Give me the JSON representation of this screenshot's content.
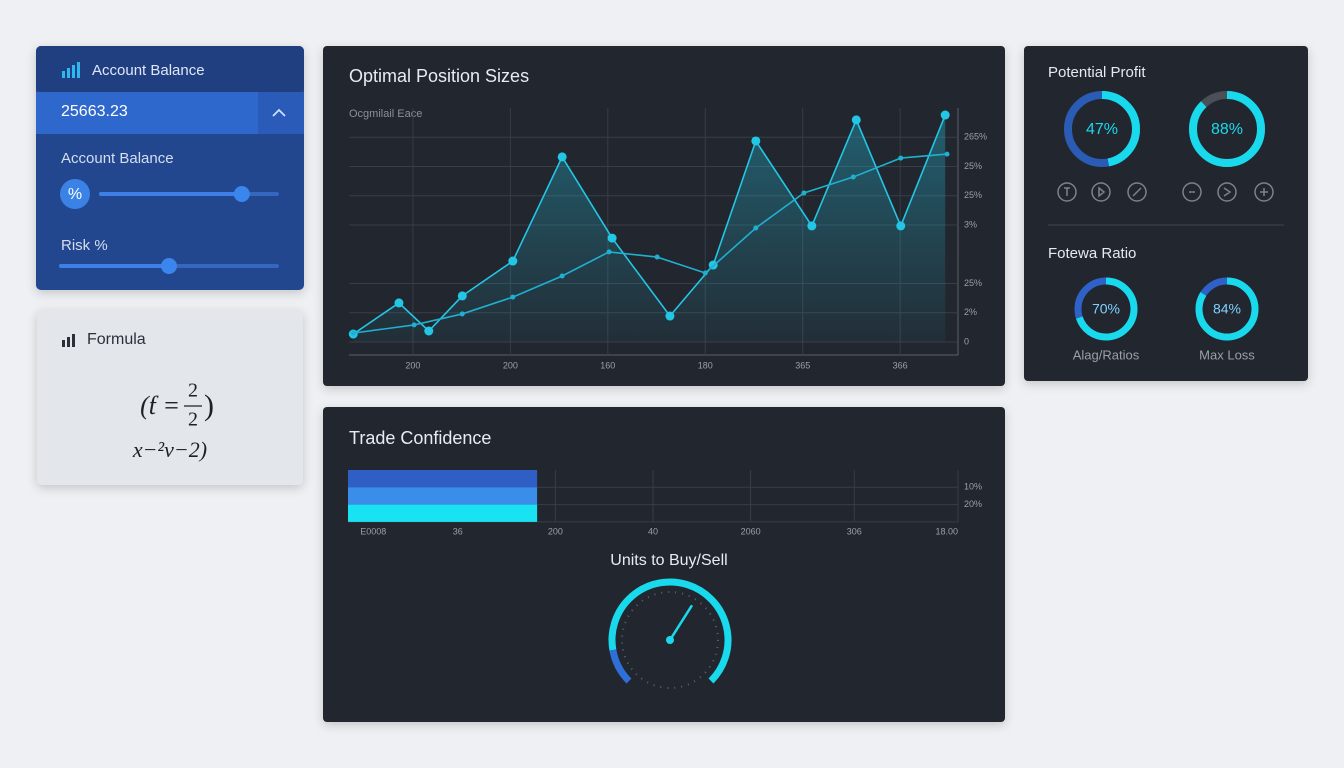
{
  "account": {
    "title": "Account Balance",
    "balance": "25663.23",
    "balance_label": "Account Balance",
    "percent_badge": "%",
    "risk_label": "Risk %",
    "slider_range": [
      0,
      100
    ],
    "sliders": [
      80,
      50
    ]
  },
  "formula": {
    "title": "Formula",
    "line1_open": "(ƭ =",
    "numerator": "2",
    "denominator": "2",
    "line1_close": ")",
    "line2": "x−²v−2)"
  },
  "chart_data": [
    {
      "type": "line",
      "title": "Optimal Position Sizes",
      "subtitle": "Ocgmilail Eace",
      "xlim": [
        0,
        100
      ],
      "xticks": [
        {
          "value": 10.5,
          "label": "200"
        },
        {
          "value": 26.5,
          "label": "200"
        },
        {
          "value": 42.5,
          "label": "160"
        },
        {
          "value": 58.5,
          "label": "180"
        },
        {
          "value": 74.5,
          "label": "365"
        },
        {
          "value": 90.5,
          "label": "366"
        }
      ],
      "ylim": [
        0,
        100
      ],
      "yticks": [
        {
          "value": 87.5,
          "label": "265%"
        },
        {
          "value": 75,
          "label": "25%"
        },
        {
          "value": 62.5,
          "label": "25%"
        },
        {
          "value": 50,
          "label": "3%"
        },
        {
          "value": 25,
          "label": "25%"
        },
        {
          "value": 12.5,
          "label": "2%"
        },
        0
      ],
      "grid": true,
      "series": [
        {
          "color": "#22c7e6",
          "area": true,
          "x": [
            0.7,
            8.2,
            13.1,
            18.6,
            26.9,
            35.0,
            43.2,
            52.7,
            59.8,
            66.8,
            76.0,
            83.3,
            90.6,
            97.9
          ],
          "values": [
            3.4,
            16.7,
            4.7,
            19.7,
            34.6,
            79.1,
            44.4,
            11.1,
            32.9,
            85.9,
            49.6,
            94.9,
            49.6,
            97.0
          ]
        },
        {
          "color": "#1fb0d0",
          "area": false,
          "x": [
            0.7,
            10.7,
            18.6,
            26.9,
            35.0,
            42.7,
            50.6,
            58.5,
            66.8,
            74.7,
            82.8,
            90.6,
            98.2
          ],
          "values": [
            3.8,
            7.3,
            12.0,
            19.2,
            28.2,
            38.5,
            36.3,
            29.5,
            48.7,
            63.7,
            70.5,
            78.6,
            80.3
          ]
        }
      ]
    },
    {
      "type": "hbar",
      "title": "Trade Confidence",
      "categories": [
        null,
        "10%",
        "20%"
      ],
      "values": [
        31,
        31,
        31
      ],
      "colors": [
        "#2f5fc4",
        "#3a8de8",
        "#19e3f2"
      ],
      "xlim": [
        0,
        100
      ],
      "xticks": [
        {
          "value": 2,
          "label": "E0008"
        },
        {
          "value": 18,
          "label": "36"
        },
        {
          "value": 34,
          "label": "200"
        },
        {
          "value": 50,
          "label": "40"
        },
        {
          "value": 66,
          "label": "2060"
        },
        {
          "value": 83,
          "label": "306"
        },
        {
          "value": 100,
          "label": "18.00"
        }
      ],
      "grid": true
    },
    {
      "type": "donut",
      "title": "Potential Profit",
      "values": [
        47,
        88
      ],
      "value_labels": [
        "47%",
        "88%"
      ],
      "colors": [
        "#19d9ec",
        "#19d9ec"
      ],
      "track_colors": [
        "#2a5bb5",
        "#4a4f58"
      ]
    },
    {
      "type": "donut",
      "title": "Fotewa Ratio",
      "categories": [
        "Alag/Ratios",
        "Max Loss"
      ],
      "values": [
        70,
        84
      ],
      "value_labels": [
        "70%",
        "84%"
      ],
      "colors": [
        "#19d9ec",
        "#19d9ec"
      ],
      "track_colors": [
        "#2f62c8",
        "#2f62c8"
      ]
    },
    {
      "type": "gauge",
      "title": "Units to Buy/Sell",
      "value": 62,
      "lim": [
        0,
        100
      ],
      "color": "#19d9ec",
      "accent_color": "#2f6fd8"
    }
  ]
}
